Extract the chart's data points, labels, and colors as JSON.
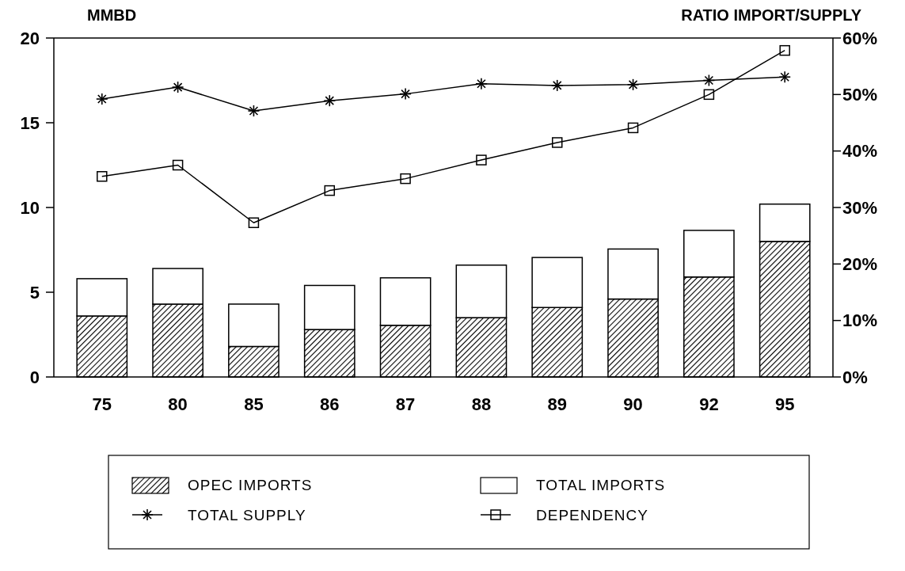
{
  "chart_data": {
    "type": "bar",
    "stacked": true,
    "ylabel": "MMBD",
    "y2label": "RATIO IMPORT/SUPPLY",
    "categories": [
      "75",
      "80",
      "85",
      "86",
      "87",
      "88",
      "89",
      "90",
      "92",
      "95"
    ],
    "series": [
      {
        "name": "OPEC IMPORTS",
        "color": "#000000",
        "values": [
          3.6,
          4.3,
          1.8,
          2.8,
          3.05,
          3.5,
          4.1,
          4.6,
          5.9,
          8.0
        ]
      },
      {
        "name": "TOTAL IMPORTS",
        "color": "#ffffff",
        "values": [
          2.2,
          2.1,
          2.5,
          2.6,
          2.8,
          3.1,
          2.95,
          2.95,
          2.75,
          2.2
        ]
      },
      {
        "name": "TOTAL SUPPLY",
        "type": "line",
        "color": "#000000",
        "marker": "cross",
        "values": [
          16.4,
          17.1,
          15.7,
          16.3,
          16.7,
          17.3,
          17.2,
          17.25,
          17.5,
          17.7
        ]
      },
      {
        "name": "DEPENDENCY",
        "type": "line",
        "color": "#000000",
        "marker": "square",
        "axis": "y2",
        "values": [
          35.5,
          37.5,
          27.3,
          33,
          35.1,
          38.4,
          41.5,
          44.1,
          50,
          57.8
        ]
      }
    ],
    "ylim": [
      0,
      20
    ],
    "yticks": [
      0,
      5,
      10,
      15,
      20
    ],
    "y2lim": [
      0,
      60
    ],
    "y2ticks": [
      {
        "value": 0,
        "label": "0%"
      },
      {
        "value": 10,
        "label": "10%"
      },
      {
        "value": 20,
        "label": "20%"
      },
      {
        "value": 30,
        "label": "30%"
      },
      {
        "value": 40,
        "label": "40%"
      },
      {
        "value": 50,
        "label": "50%"
      },
      {
        "value": 60,
        "label": "60%"
      }
    ],
    "legend": "bottom",
    "grid": false,
    "line_style": "solid"
  }
}
